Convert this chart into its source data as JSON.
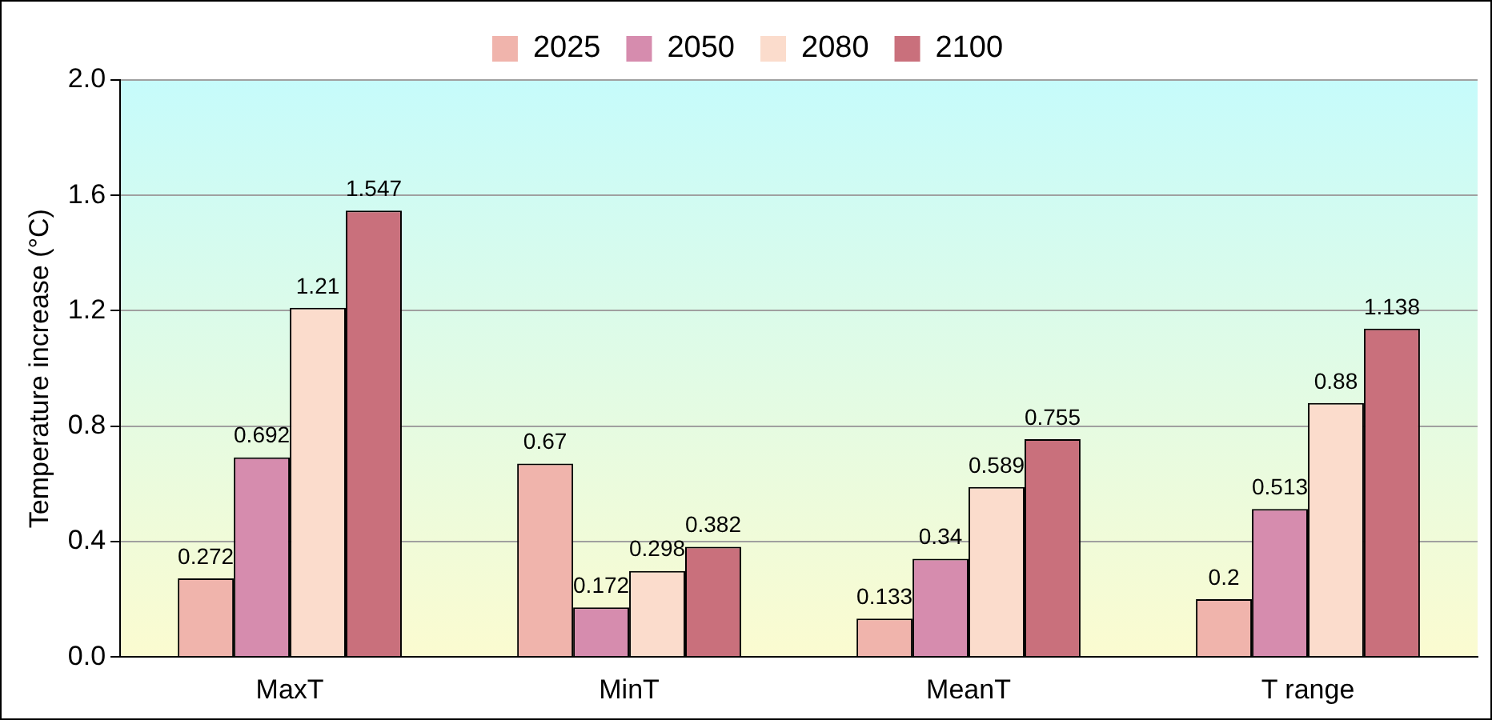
{
  "chart_data": {
    "type": "bar",
    "ylabel": "Temperature increase (°C)",
    "categories": [
      "MaxT",
      "MinT",
      "MeanT",
      "T range"
    ],
    "series": [
      {
        "name": "2025",
        "color": "#f0b4ac",
        "values": [
          0.272,
          0.67,
          0.133,
          0.2
        ]
      },
      {
        "name": "2050",
        "color": "#d68cae",
        "values": [
          0.692,
          0.172,
          0.34,
          0.513
        ]
      },
      {
        "name": "2080",
        "color": "#fbdccc",
        "values": [
          1.21,
          0.298,
          0.589,
          0.88
        ]
      },
      {
        "name": "2100",
        "color": "#c9707c",
        "values": [
          1.547,
          0.382,
          0.755,
          1.138
        ]
      }
    ],
    "ylim": [
      0,
      2
    ],
    "yticks": [
      {
        "value": 0,
        "label": "0.0"
      },
      {
        "value": 0.4,
        "label": "0.4"
      },
      {
        "value": 0.8,
        "label": "0.8"
      },
      {
        "value": 1.2,
        "label": "1.2"
      },
      {
        "value": 1.6,
        "label": "1.6"
      },
      {
        "value": 2,
        "label": "2.0"
      }
    ],
    "grid": "y",
    "legend": "top",
    "data_labels": true
  }
}
